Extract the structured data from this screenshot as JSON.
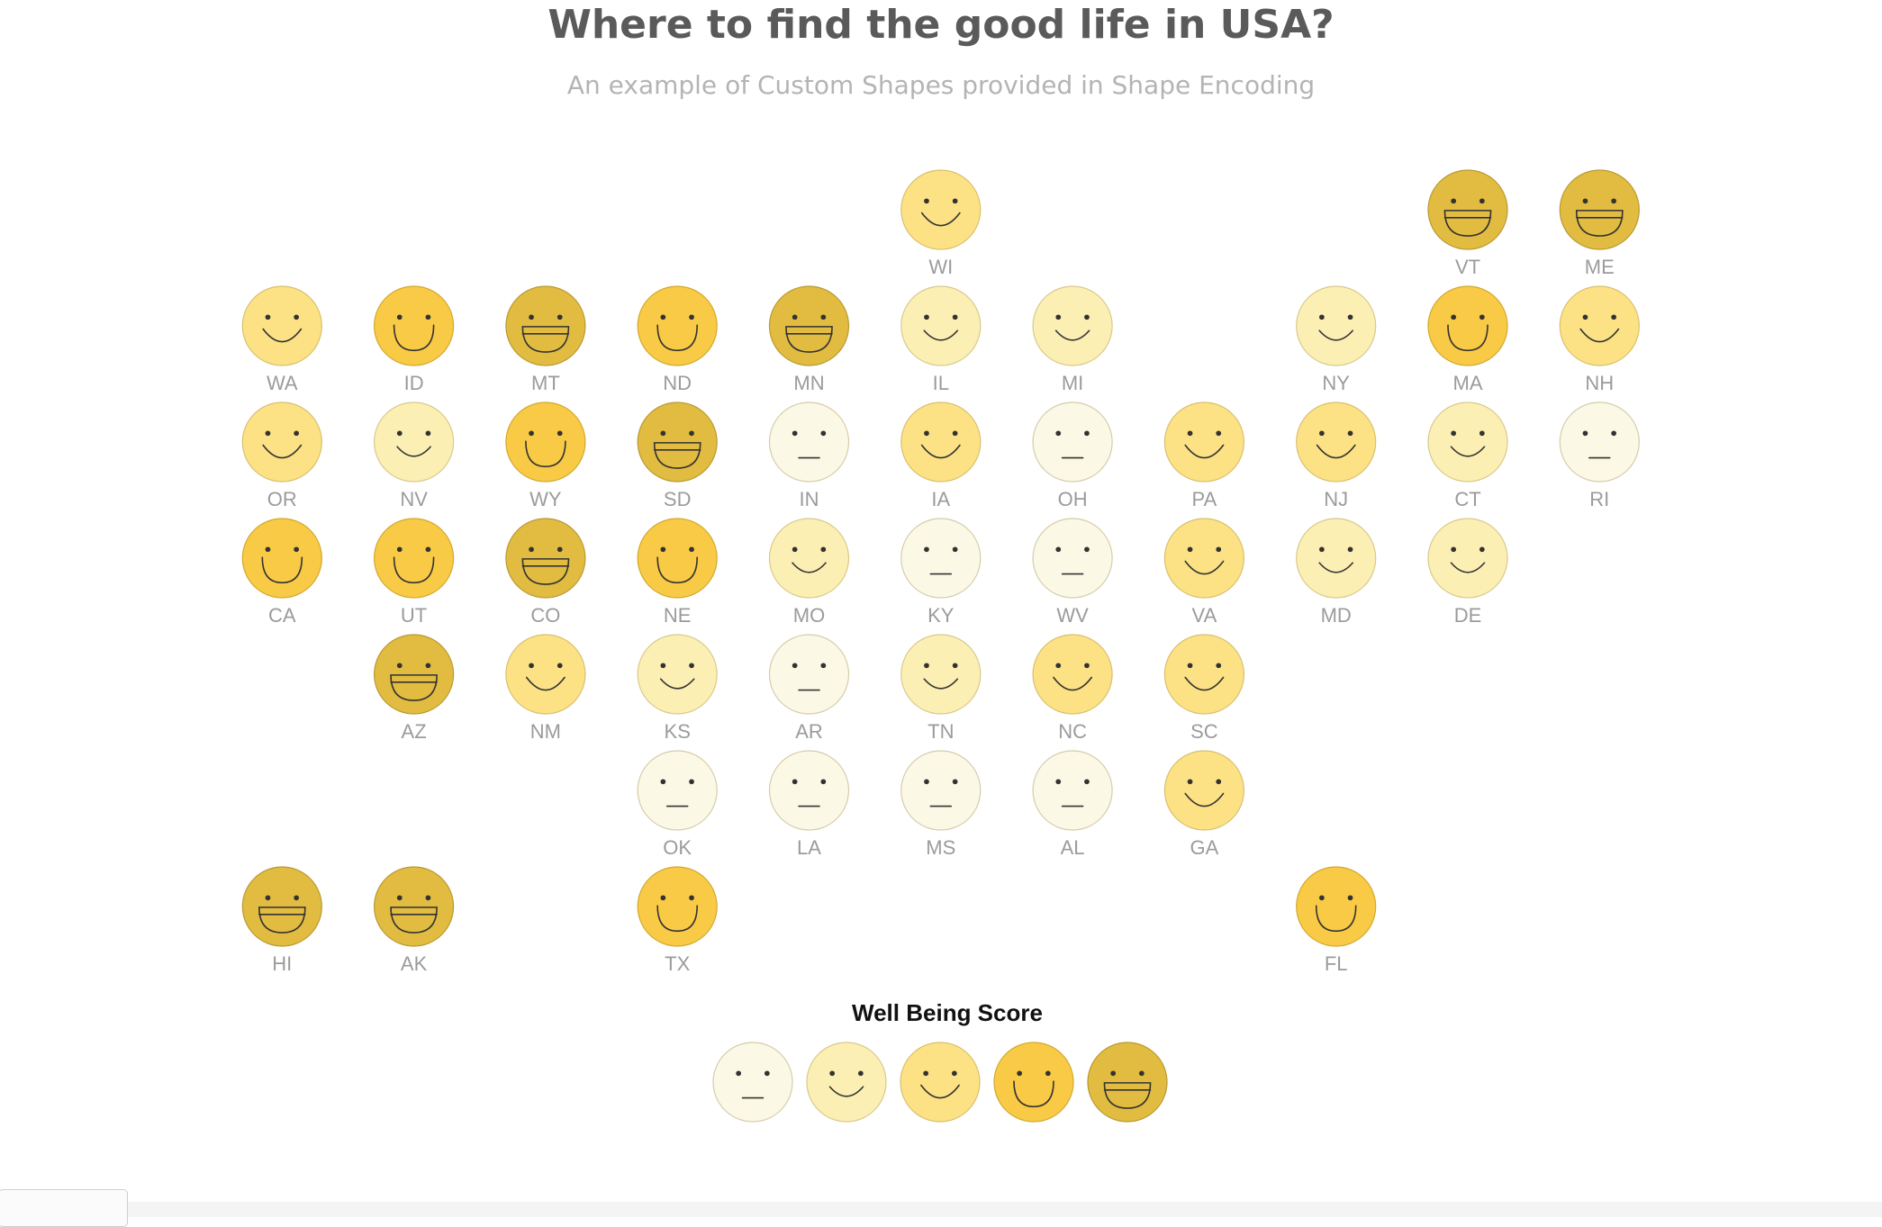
{
  "title": "Where to find the good life in USA?",
  "subtitle": "An example of Custom Shapes provided in Shape Encoding",
  "chart_data": {
    "type": "scatter",
    "mark": "custom-smiley-shape",
    "grid_columns": 12,
    "grid_rows": 7,
    "points": [
      {
        "state": "WI",
        "col": 6,
        "row": 0,
        "score": 3
      },
      {
        "state": "VT",
        "col": 10,
        "row": 0,
        "score": 5
      },
      {
        "state": "ME",
        "col": 11,
        "row": 0,
        "score": 5
      },
      {
        "state": "WA",
        "col": 1,
        "row": 1,
        "score": 3
      },
      {
        "state": "ID",
        "col": 2,
        "row": 1,
        "score": 4
      },
      {
        "state": "MT",
        "col": 3,
        "row": 1,
        "score": 5
      },
      {
        "state": "ND",
        "col": 4,
        "row": 1,
        "score": 4
      },
      {
        "state": "MN",
        "col": 5,
        "row": 1,
        "score": 5
      },
      {
        "state": "IL",
        "col": 6,
        "row": 1,
        "score": 2
      },
      {
        "state": "MI",
        "col": 7,
        "row": 1,
        "score": 2
      },
      {
        "state": "NY",
        "col": 9,
        "row": 1,
        "score": 2
      },
      {
        "state": "MA",
        "col": 10,
        "row": 1,
        "score": 4
      },
      {
        "state": "NH",
        "col": 11,
        "row": 1,
        "score": 3
      },
      {
        "state": "OR",
        "col": 1,
        "row": 2,
        "score": 3
      },
      {
        "state": "NV",
        "col": 2,
        "row": 2,
        "score": 2
      },
      {
        "state": "WY",
        "col": 3,
        "row": 2,
        "score": 4
      },
      {
        "state": "SD",
        "col": 4,
        "row": 2,
        "score": 5
      },
      {
        "state": "IN",
        "col": 5,
        "row": 2,
        "score": 1
      },
      {
        "state": "IA",
        "col": 6,
        "row": 2,
        "score": 3
      },
      {
        "state": "OH",
        "col": 7,
        "row": 2,
        "score": 1
      },
      {
        "state": "PA",
        "col": 8,
        "row": 2,
        "score": 3
      },
      {
        "state": "NJ",
        "col": 9,
        "row": 2,
        "score": 3
      },
      {
        "state": "CT",
        "col": 10,
        "row": 2,
        "score": 2
      },
      {
        "state": "RI",
        "col": 11,
        "row": 2,
        "score": 1
      },
      {
        "state": "CA",
        "col": 1,
        "row": 3,
        "score": 4
      },
      {
        "state": "UT",
        "col": 2,
        "row": 3,
        "score": 4
      },
      {
        "state": "CO",
        "col": 3,
        "row": 3,
        "score": 5
      },
      {
        "state": "NE",
        "col": 4,
        "row": 3,
        "score": 4
      },
      {
        "state": "MO",
        "col": 5,
        "row": 3,
        "score": 2
      },
      {
        "state": "KY",
        "col": 6,
        "row": 3,
        "score": 1
      },
      {
        "state": "WV",
        "col": 7,
        "row": 3,
        "score": 1
      },
      {
        "state": "VA",
        "col": 8,
        "row": 3,
        "score": 3
      },
      {
        "state": "MD",
        "col": 9,
        "row": 3,
        "score": 2
      },
      {
        "state": "DE",
        "col": 10,
        "row": 3,
        "score": 2
      },
      {
        "state": "AZ",
        "col": 2,
        "row": 4,
        "score": 5
      },
      {
        "state": "NM",
        "col": 3,
        "row": 4,
        "score": 3
      },
      {
        "state": "KS",
        "col": 4,
        "row": 4,
        "score": 2
      },
      {
        "state": "AR",
        "col": 5,
        "row": 4,
        "score": 1
      },
      {
        "state": "TN",
        "col": 6,
        "row": 4,
        "score": 2
      },
      {
        "state": "NC",
        "col": 7,
        "row": 4,
        "score": 3
      },
      {
        "state": "SC",
        "col": 8,
        "row": 4,
        "score": 3
      },
      {
        "state": "OK",
        "col": 4,
        "row": 5,
        "score": 1
      },
      {
        "state": "LA",
        "col": 5,
        "row": 5,
        "score": 1
      },
      {
        "state": "MS",
        "col": 6,
        "row": 5,
        "score": 1
      },
      {
        "state": "AL",
        "col": 7,
        "row": 5,
        "score": 1
      },
      {
        "state": "GA",
        "col": 8,
        "row": 5,
        "score": 3
      },
      {
        "state": "HI",
        "col": 1,
        "row": 6,
        "score": 5
      },
      {
        "state": "AK",
        "col": 2,
        "row": 6,
        "score": 5
      },
      {
        "state": "TX",
        "col": 4,
        "row": 6,
        "score": 4
      },
      {
        "state": "FL",
        "col": 9,
        "row": 6,
        "score": 4
      }
    ],
    "legend": {
      "title": "Well Being Score",
      "placement": "bottom-center",
      "levels": [
        1,
        2,
        3,
        4,
        5
      ]
    },
    "colors": {
      "1": "#fcf8e6",
      "2": "#fcefb3",
      "3": "#fce284",
      "4": "#f9ca45",
      "5": "#e2bb41"
    },
    "stroke_colors": {
      "1": "#d4ccaa",
      "2": "#d8c98c",
      "3": "#d8c070",
      "4": "#d1a92e",
      "5": "#b89a33"
    },
    "label_color": "#9b9b9b",
    "feature_color": "#333333"
  }
}
